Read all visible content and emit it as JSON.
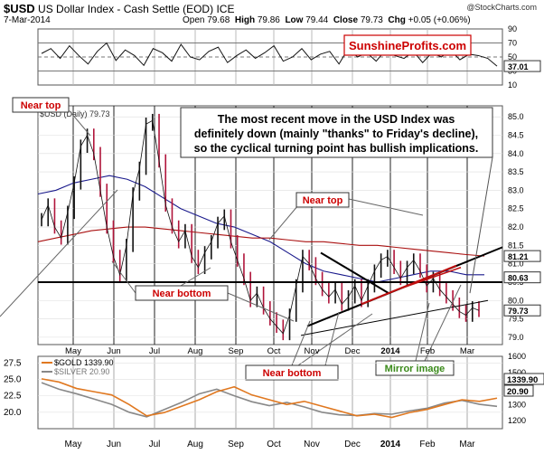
{
  "header": {
    "symbol": "$USD",
    "name": "US Dollar Index - Cash Settle (EOD)",
    "exchange": "ICE",
    "date": "7-Mar-2014",
    "open_label": "Open",
    "open": "79.68",
    "high_label": "High",
    "high": "79.86",
    "low_label": "Low",
    "low": "79.44",
    "close_label": "Close",
    "close": "79.73",
    "chg_label": "Chg",
    "chg": "+0.05 (+0.06%)",
    "watermark": "@StockCharts.com"
  },
  "brand": {
    "text": "SunshineProfits.com",
    "color": "#cc0000"
  },
  "annotation_box": {
    "line1": "The most recent move in the USD Index was",
    "line2": "definitely down (mainly \"thanks\" to Friday's decline),",
    "line3": "so the cyclical turning point has bullish implications."
  },
  "chart_data": [
    {
      "type": "line",
      "panel": "rsi",
      "y_ticks": [
        "90",
        "70",
        "50",
        "30",
        "10"
      ],
      "ylim": [
        10,
        90
      ],
      "reference_levels": [
        70,
        50,
        30
      ],
      "last_value_label": "37.01",
      "values": [
        55,
        62,
        48,
        66,
        52,
        40,
        58,
        70,
        45,
        60,
        52,
        38,
        62,
        56,
        44,
        68,
        50,
        46,
        58,
        64,
        42,
        52,
        60,
        48,
        56,
        66,
        44,
        50,
        62,
        46,
        54,
        58,
        40,
        62,
        50,
        56,
        44,
        60,
        52,
        48,
        58,
        42,
        56,
        50,
        60,
        46,
        54,
        52,
        48,
        37
      ]
    },
    {
      "type": "line",
      "panel": "price",
      "series_label": "$USD (Daily) 79.73",
      "x_labels": [
        "May",
        "Jun",
        "Jul",
        "Aug",
        "Sep",
        "Oct",
        "Nov",
        "Dec",
        "2014",
        "Feb",
        "Mar"
      ],
      "y_ticks": [
        "85.0",
        "84.5",
        "84.0",
        "83.5",
        "83.0",
        "82.5",
        "82.0",
        "81.5",
        "81.0",
        "80.5",
        "80.0",
        "79.5",
        "79.0"
      ],
      "ylim": [
        78.8,
        85.3
      ],
      "price_tags": [
        {
          "text": "81.21",
          "value": 81.21
        },
        {
          "text": "80.63",
          "value": 80.63
        },
        {
          "text": "79.73",
          "value": 79.73
        }
      ],
      "support_level": 80.5,
      "close_values": [
        82.2,
        82.6,
        82.0,
        81.7,
        82.4,
        83.2,
        84.2,
        84.5,
        84.0,
        83.0,
        82.0,
        81.2,
        80.7,
        81.5,
        82.9,
        83.6,
        84.8,
        84.9,
        83.8,
        82.6,
        82.0,
        81.6,
        81.9,
        81.2,
        80.9,
        81.3,
        81.6,
        82.1,
        82.3,
        81.6,
        81.1,
        80.6,
        80.0,
        80.2,
        79.8,
        79.5,
        79.3,
        79.1,
        79.6,
        80.4,
        81.2,
        81.0,
        80.6,
        80.3,
        80.1,
        80.3,
        79.9,
        80.1,
        80.4,
        80.0,
        80.4,
        80.8,
        81.1,
        81.2,
        80.9,
        80.6,
        80.9,
        81.1,
        80.8,
        80.4,
        80.6,
        80.3,
        80.1,
        79.9,
        79.7,
        79.6,
        79.8,
        79.73
      ],
      "moving_averages": [
        {
          "color": "#1a1a8c",
          "values": [
            82.9,
            83.0,
            83.2,
            83.3,
            83.4,
            83.3,
            83.1,
            82.8,
            82.5,
            82.3,
            82.1,
            82.0,
            81.8,
            81.6,
            81.3,
            81.0,
            80.8,
            80.7,
            80.6,
            80.5,
            80.6,
            80.7,
            80.8,
            80.8,
            80.7,
            80.7
          ]
        },
        {
          "color": "#aa1111",
          "values": [
            81.6,
            81.7,
            81.8,
            81.9,
            81.95,
            82.0,
            82.0,
            81.95,
            81.9,
            81.85,
            81.8,
            81.75,
            81.7,
            81.7,
            81.65,
            81.6,
            81.6,
            81.55,
            81.5,
            81.5,
            81.45,
            81.4,
            81.35,
            81.3,
            81.25,
            81.21
          ]
        }
      ],
      "callouts": [
        {
          "text": "Near top",
          "kind": "box"
        },
        {
          "text": "Near top",
          "kind": "box"
        },
        {
          "text": "Near bottom",
          "kind": "box"
        },
        {
          "text": "Near bottom",
          "kind": "box"
        },
        {
          "text": "Mirror image",
          "kind": "box-green"
        }
      ]
    },
    {
      "type": "line",
      "panel": "metals",
      "series": [
        {
          "name": "$GOLD 1339.90",
          "color": "#e07820",
          "last": "1339.90",
          "values": [
            1460,
            1440,
            1400,
            1380,
            1360,
            1300,
            1230,
            1250,
            1290,
            1330,
            1380,
            1410,
            1360,
            1330,
            1300,
            1320,
            1290,
            1260,
            1230,
            1240,
            1220,
            1250,
            1270,
            1300,
            1330,
            1320,
            1339.9
          ]
        },
        {
          "name": "$SILVER 20.90",
          "color": "#888888",
          "last": "20.90",
          "values": [
            24.5,
            23.5,
            22.8,
            22.0,
            21.2,
            20.0,
            19.3,
            20.4,
            21.5,
            22.8,
            23.5,
            22.5,
            21.6,
            21.0,
            21.5,
            20.8,
            20.0,
            19.6,
            19.5,
            19.8,
            19.7,
            20.2,
            20.6,
            21.4,
            21.8,
            21.2,
            20.9
          ]
        }
      ],
      "left_ticks": [
        "27.5",
        "25.0",
        "22.5",
        "20.0"
      ],
      "right_ticks": [
        "1600",
        "1500",
        "1400",
        "1300",
        "1200"
      ],
      "x_labels": [
        "May",
        "Jun",
        "Jul",
        "Aug",
        "Sep",
        "Oct",
        "Nov",
        "Dec",
        "2014",
        "Feb",
        "Mar"
      ]
    }
  ]
}
